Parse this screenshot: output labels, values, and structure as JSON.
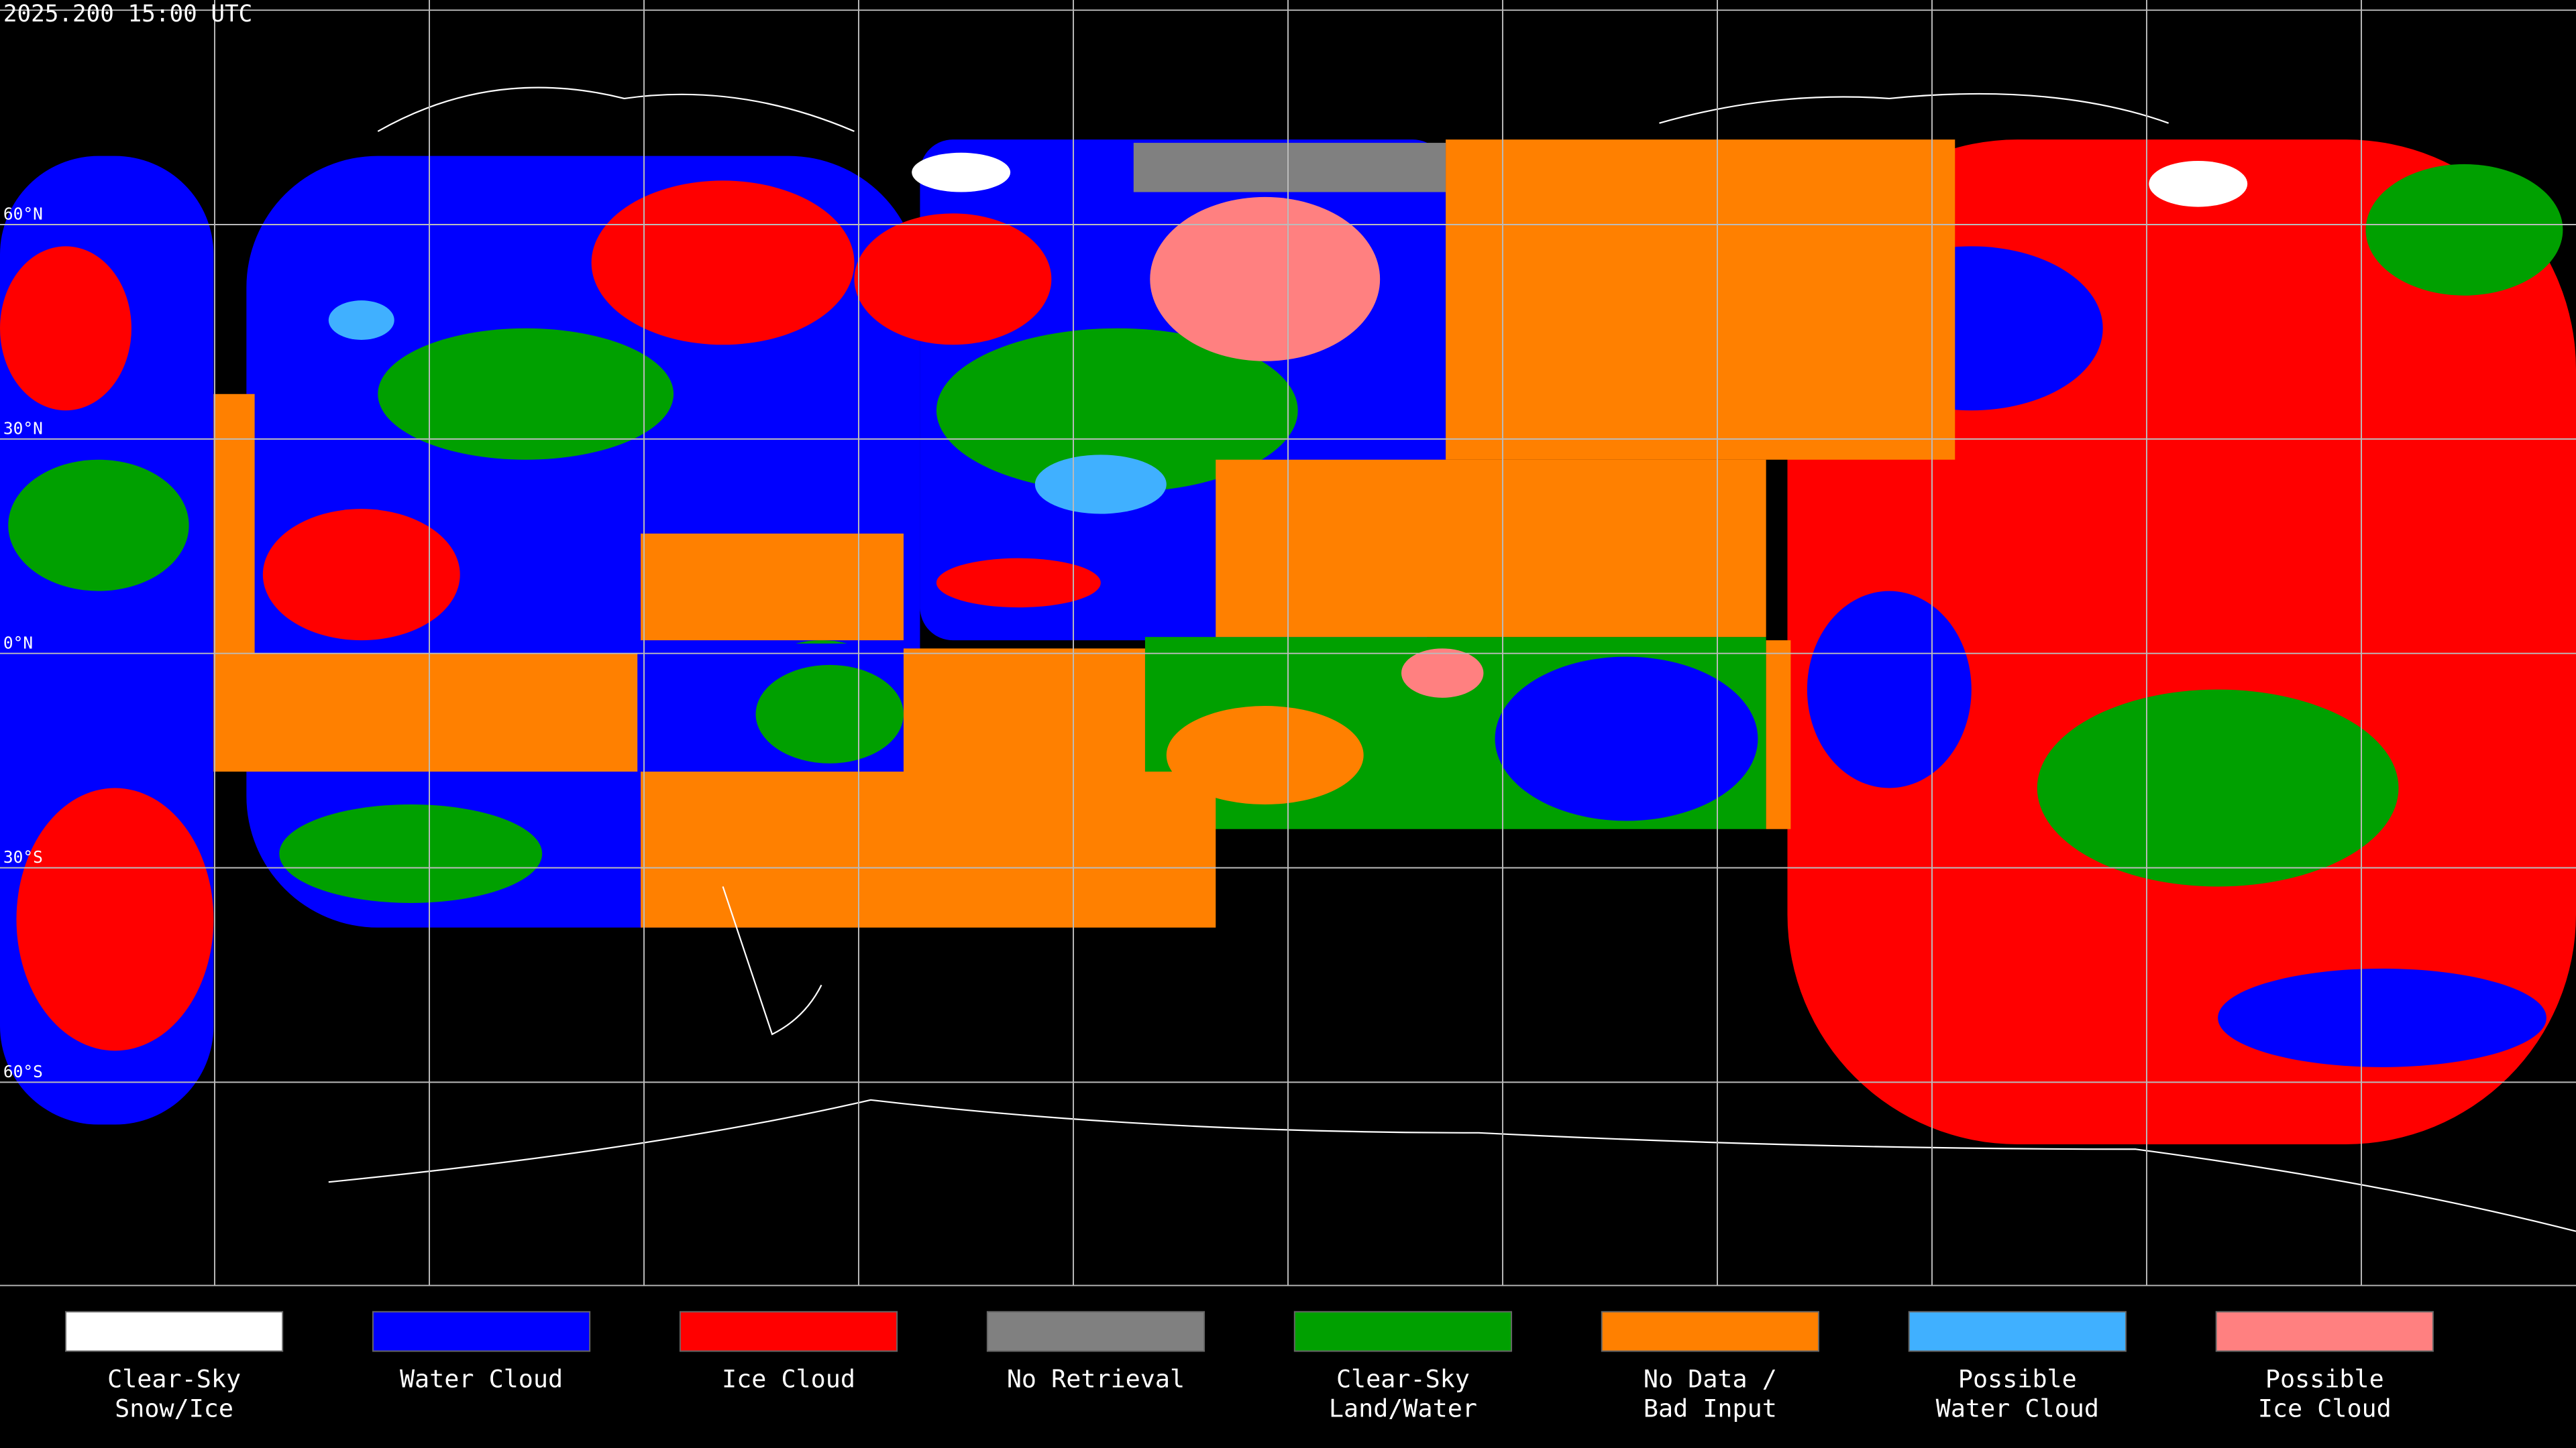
{
  "header": {
    "title": "2025.200 15:00 UTC"
  },
  "latitude_labels": [
    "60°N",
    "30°N",
    "0°N",
    "30°S",
    "60°S"
  ],
  "legend": [
    {
      "lines": [
        "Clear-Sky",
        "Snow/Ice"
      ],
      "color": "#ffffff"
    },
    {
      "lines": [
        "Water Cloud"
      ],
      "color": "#0000ff"
    },
    {
      "lines": [
        "Ice Cloud"
      ],
      "color": "#ff0000"
    },
    {
      "lines": [
        "No Retrieval"
      ],
      "color": "#808080"
    },
    {
      "lines": [
        "Clear-Sky",
        "Land/Water"
      ],
      "color": "#00a000"
    },
    {
      "lines": [
        "No Data /",
        "Bad Input"
      ],
      "color": "#ff8000"
    },
    {
      "lines": [
        "Possible",
        "Water Cloud"
      ],
      "color": "#40b0ff"
    },
    {
      "lines": [
        "Possible",
        "Ice Cloud"
      ],
      "color": "#ff8080"
    }
  ]
}
